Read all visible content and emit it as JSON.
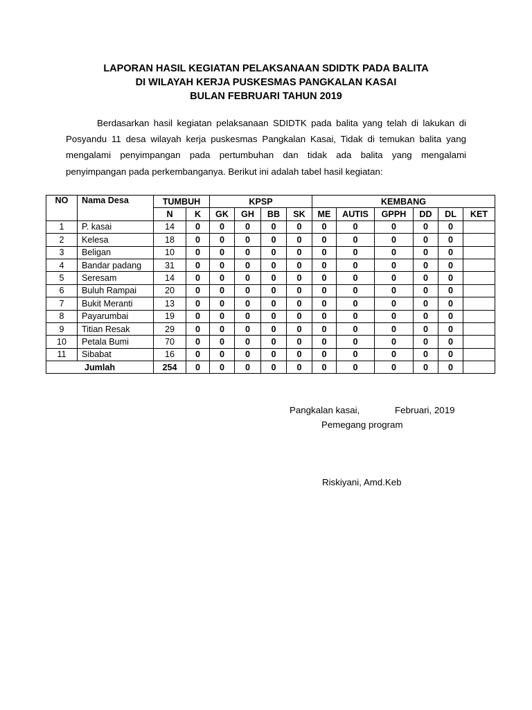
{
  "title_lines": [
    "LAPORAN HASIL KEGIATAN PELAKSANAAN SDIDTK PADA BALITA",
    "DI WILAYAH KERJA PUSKESMAS PANGKALAN KASAI",
    "BULAN  FEBRUARI TAHUN 2019"
  ],
  "paragraph": "Berdasarkan hasil kegiatan pelaksanaan SDIDTK pada balita yang telah di lakukan di Posyandu 11 desa wilayah kerja puskesmas Pangkalan Kasai, Tidak di temukan balita yang mengalami penyimpangan pada pertumbuhan dan tidak ada balita yang mengalami penyimpangan pada perkembanganya. Berikut ini adalah tabel hasil kegiatan:",
  "table": {
    "group_headers": {
      "no": "NO",
      "nama": "Nama Desa",
      "tumbuh": "TUMBUH",
      "kpsp": "KPSP",
      "kembang": "KEMBANG"
    },
    "sub_headers": [
      "N",
      "K",
      "GK",
      "GH",
      "BB",
      "SK",
      "ME",
      "AUTIS",
      "GPPH",
      "DD",
      "DL",
      "KET"
    ],
    "rows": [
      {
        "no": "1",
        "nama": "P. kasai",
        "vals": [
          "14",
          "0",
          "0",
          "0",
          "0",
          "0",
          "0",
          "0",
          "0",
          "0",
          "0",
          ""
        ]
      },
      {
        "no": "2",
        "nama": "Kelesa",
        "vals": [
          "18",
          "0",
          "0",
          "0",
          "0",
          "0",
          "0",
          "0",
          "0",
          "0",
          "0",
          ""
        ]
      },
      {
        "no": "3",
        "nama": "Beligan",
        "vals": [
          "10",
          "0",
          "0",
          "0",
          "0",
          "0",
          "0",
          "0",
          "0",
          "0",
          "0",
          ""
        ]
      },
      {
        "no": "4",
        "nama": "Bandar padang",
        "vals": [
          "31",
          "0",
          "0",
          "0",
          "0",
          "0",
          "0",
          "0",
          "0",
          "0",
          "0",
          ""
        ]
      },
      {
        "no": "5",
        "nama": "Seresam",
        "vals": [
          "14",
          "0",
          "0",
          "0",
          "0",
          "0",
          "0",
          "0",
          "0",
          "0",
          "0",
          ""
        ]
      },
      {
        "no": "6",
        "nama": "Buluh Rampai",
        "vals": [
          "20",
          "0",
          "0",
          "0",
          "0",
          "0",
          "0",
          "0",
          "0",
          "0",
          "0",
          ""
        ]
      },
      {
        "no": "7",
        "nama": "Bukit Meranti",
        "vals": [
          "13",
          "0",
          "0",
          "0",
          "0",
          "0",
          "0",
          "0",
          "0",
          "0",
          "0",
          ""
        ]
      },
      {
        "no": "8",
        "nama": "Payarumbai",
        "vals": [
          "19",
          "0",
          "0",
          "0",
          "0",
          "0",
          "0",
          "0",
          "0",
          "0",
          "0",
          ""
        ]
      },
      {
        "no": "9",
        "nama": "Titian Resak",
        "vals": [
          "29",
          "0",
          "0",
          "0",
          "0",
          "0",
          "0",
          "0",
          "0",
          "0",
          "0",
          ""
        ]
      },
      {
        "no": "10",
        "nama": "Petala Bumi",
        "vals": [
          "70",
          "0",
          "0",
          "0",
          "0",
          "0",
          "0",
          "0",
          "0",
          "0",
          "0",
          ""
        ]
      },
      {
        "no": "11",
        "nama": "Sibabat",
        "vals": [
          "16",
          "0",
          "0",
          "0",
          "0",
          "0",
          "0",
          "0",
          "0",
          "0",
          "0",
          ""
        ]
      }
    ],
    "total": {
      "label": "Jumlah",
      "vals": [
        "254",
        "0",
        "0",
        "0",
        "0",
        "0",
        "0",
        "0",
        "0",
        "0",
        "0",
        ""
      ]
    }
  },
  "signature": {
    "place": "Pangkalan kasai,",
    "date": "Februari, 2019",
    "role": "Pemegang program",
    "name": "Riskiyani, Amd.Keb"
  }
}
